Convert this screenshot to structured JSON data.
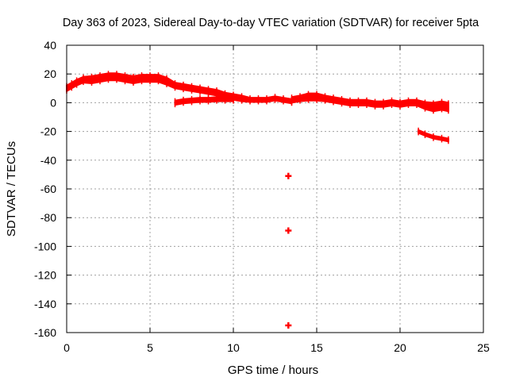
{
  "chart_data": {
    "type": "scatter",
    "title": "Day 363 of 2023, Sidereal Day-to-day VTEC variation (SDTVAR) for receiver 5pta",
    "xlabel": "GPS time / hours",
    "ylabel": "SDTVAR / TECUs",
    "xlim": [
      0,
      25
    ],
    "ylim": [
      -160,
      40
    ],
    "xticks": [
      0,
      5,
      10,
      15,
      20,
      25
    ],
    "yticks": [
      40,
      20,
      0,
      -20,
      -40,
      -60,
      -80,
      -100,
      -120,
      -140,
      -160
    ],
    "grid": true,
    "series": [
      {
        "name": "SDTVAR",
        "color": "#ff0000",
        "marker": "plus",
        "bands": [
          {
            "label": "upper arc",
            "x": [
              0.0,
              0.3,
              0.6,
              1.0,
              1.5,
              2.0,
              2.5,
              3.0,
              3.5,
              4.0,
              4.5,
              5.0,
              5.5,
              6.0,
              6.5,
              7.0,
              7.5,
              8.0,
              8.5,
              9.0,
              9.5,
              10.0,
              10.5,
              11.0,
              11.5,
              12.0,
              12.5,
              13.0,
              13.5
            ],
            "y": [
              10,
              12,
              14,
              16,
              16,
              17,
              18,
              18,
              17,
              16,
              17,
              17,
              17,
              15,
              12,
              11,
              10,
              9,
              8,
              7,
              5,
              4,
              3,
              2,
              2,
              2,
              3,
              2,
              1
            ],
            "halfwidth": [
              2,
              2,
              2,
              2,
              2.5,
              2.5,
              2.5,
              2.5,
              2.5,
              2.5,
              2.5,
              2.5,
              2.5,
              2.5,
              2,
              2,
              2,
              2,
              2,
              2,
              2,
              2,
              2,
              1.5,
              1.5,
              1.5,
              1.5,
              1.5,
              1.5
            ]
          },
          {
            "label": "lower arc",
            "x": [
              6.5,
              7.0,
              7.5,
              8.0,
              8.5,
              9.0,
              9.5,
              10.0
            ],
            "y": [
              0,
              1,
              1.5,
              2,
              2,
              2.5,
              2.5,
              2.5
            ],
            "halfwidth": [
              1.5,
              1.5,
              1.5,
              1.5,
              1.5,
              1.5,
              1.5,
              1.5
            ]
          },
          {
            "label": "mid arc",
            "x": [
              13.5,
              14.0,
              14.5,
              15.0,
              15.5,
              16.0,
              16.5,
              17.0,
              17.5,
              18.0,
              18.5,
              19.0,
              19.5,
              20.0,
              20.5,
              21.0,
              21.5,
              22.0,
              22.5,
              22.9
            ],
            "y": [
              2,
              3,
              4,
              4,
              3,
              2,
              1,
              0,
              0,
              0,
              -1,
              -1,
              0,
              -1,
              0,
              0,
              -2,
              -3,
              -2,
              -3
            ],
            "halfwidth": [
              2,
              2,
              2.5,
              2.5,
              2,
              2,
              2,
              2,
              2,
              2,
              2,
              2,
              2,
              2,
              2,
              2,
              2.5,
              3,
              3,
              3
            ]
          },
          {
            "label": "late descending segment",
            "x": [
              21.1,
              21.5,
              22.0,
              22.5,
              22.9
            ],
            "y": [
              -20,
              -22,
              -24,
              -25,
              -26
            ],
            "halfwidth": [
              1,
              1,
              1,
              1,
              1
            ]
          }
        ],
        "isolated_points": [
          {
            "x": 13.3,
            "y": -51
          },
          {
            "x": 13.3,
            "y": -89
          },
          {
            "x": 13.3,
            "y": -155
          }
        ]
      }
    ]
  }
}
